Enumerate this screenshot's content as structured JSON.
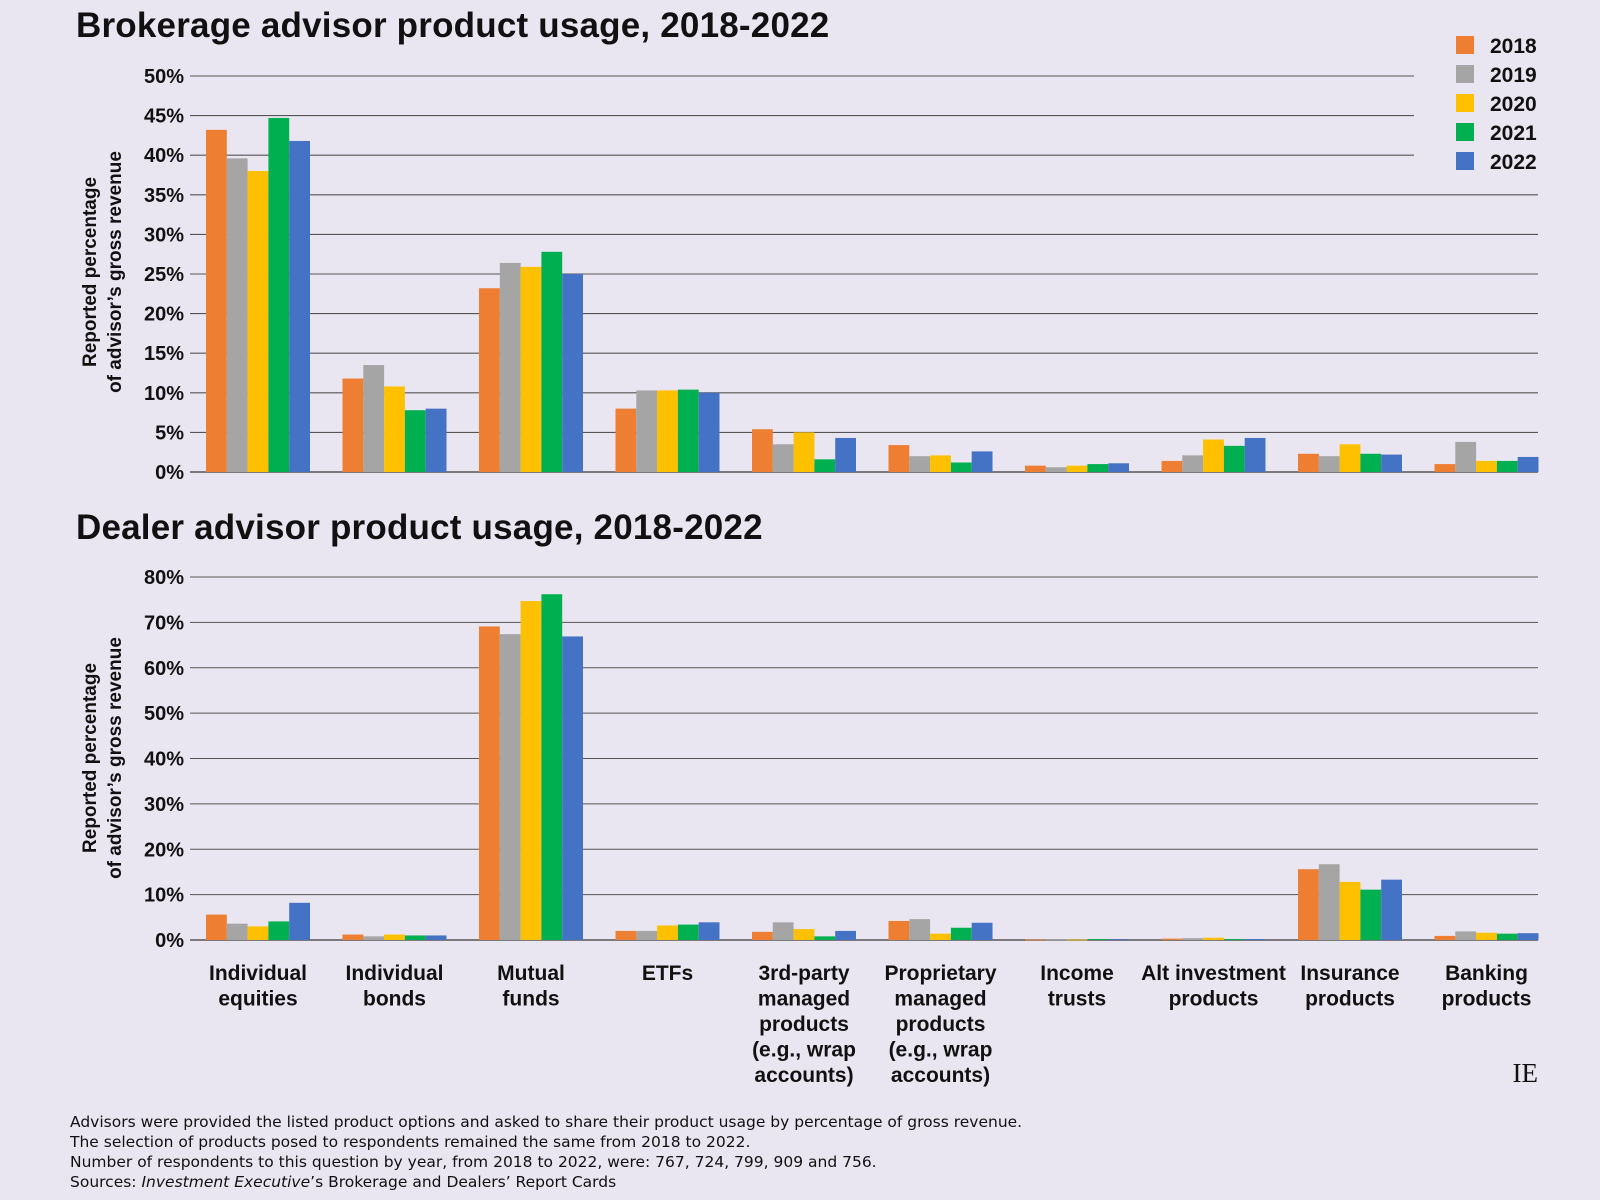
{
  "colors": {
    "2018": "#ee7e32",
    "2019": "#a5a5a5",
    "2020": "#ffc000",
    "2021": "#00b050",
    "2022": "#4472c4",
    "gridline": "#555555",
    "background": "#e9e6f1"
  },
  "brand": "IE",
  "footnotes": {
    "line1": "Advisors were provided the listed product options and asked to share their product usage by percentage of gross revenue.",
    "line2": "The selection of products posed to respondents remained the same from 2018 to 2022.",
    "line3": "Number of respondents to this question by year, from 2018 to 2022, were: 767, 724, 799, 909 and 756.",
    "line4_prefix": "Sources: ",
    "line4_italic": "Investment Executive",
    "line4_suffix": "’s Brokerage and Dealers’ Report Cards"
  },
  "chart_data": [
    {
      "type": "bar",
      "title": "Brokerage advisor product usage, 2018-2022",
      "ylabel": [
        "Reported percentage",
        "of advisor’s gross revenue"
      ],
      "ylim": [
        0,
        50
      ],
      "yticks": [
        "0%",
        "5%",
        "10%",
        "15%",
        "20%",
        "25%",
        "30%",
        "35%",
        "40%",
        "45%",
        "50%"
      ],
      "grid": true,
      "legend": "top-right",
      "categories": [
        [
          "Individual",
          "equities"
        ],
        [
          "Individual",
          "bonds"
        ],
        [
          "Mutual",
          "funds"
        ],
        [
          "ETFs"
        ],
        [
          "3rd-party",
          "managed",
          "products",
          "(e.g., wrap",
          "accounts)"
        ],
        [
          "Proprietary",
          "managed",
          "products",
          "(e.g., wrap",
          "accounts)"
        ],
        [
          "Income",
          "trusts"
        ],
        [
          "Alt investment",
          "products"
        ],
        [
          "Insurance",
          "products"
        ],
        [
          "Banking",
          "products"
        ]
      ],
      "series": [
        {
          "name": "2018",
          "values": [
            43.2,
            11.8,
            23.2,
            8.0,
            5.4,
            3.4,
            0.8,
            1.4,
            2.3,
            1.0
          ]
        },
        {
          "name": "2019",
          "values": [
            39.6,
            13.5,
            26.4,
            10.3,
            3.5,
            2.0,
            0.6,
            2.1,
            2.0,
            3.8
          ]
        },
        {
          "name": "2020",
          "values": [
            38.0,
            10.8,
            25.9,
            10.3,
            5.0,
            2.1,
            0.8,
            4.1,
            3.5,
            1.4
          ]
        },
        {
          "name": "2021",
          "values": [
            44.7,
            7.8,
            27.8,
            10.4,
            1.6,
            1.2,
            1.0,
            3.3,
            2.3,
            1.4
          ]
        },
        {
          "name": "2022",
          "values": [
            41.8,
            8.0,
            25.0,
            10.0,
            4.3,
            2.6,
            1.1,
            4.3,
            2.2,
            1.9
          ]
        }
      ]
    },
    {
      "type": "bar",
      "title": "Dealer advisor product usage, 2018-2022",
      "ylabel": [
        "Reported percentage",
        "of advisor’s gross revenue"
      ],
      "ylim": [
        0,
        80
      ],
      "yticks": [
        "0%",
        "10%",
        "20%",
        "30%",
        "40%",
        "50%",
        "60%",
        "70%",
        "80%"
      ],
      "grid": true,
      "categories": [
        [
          "Individual",
          "equities"
        ],
        [
          "Individual",
          "bonds"
        ],
        [
          "Mutual",
          "funds"
        ],
        [
          "ETFs"
        ],
        [
          "3rd-party",
          "managed",
          "products",
          "(e.g., wrap",
          "accounts)"
        ],
        [
          "Proprietary",
          "managed",
          "products",
          "(e.g., wrap",
          "accounts)"
        ],
        [
          "Income",
          "trusts"
        ],
        [
          "Alt investment",
          "products"
        ],
        [
          "Insurance",
          "products"
        ],
        [
          "Banking",
          "products"
        ]
      ],
      "series": [
        {
          "name": "2018",
          "values": [
            5.6,
            1.2,
            69.1,
            2.0,
            1.8,
            4.2,
            0.1,
            0.3,
            15.6,
            0.9
          ]
        },
        {
          "name": "2019",
          "values": [
            3.6,
            0.8,
            67.4,
            2.0,
            3.9,
            4.6,
            0.1,
            0.4,
            16.7,
            1.9
          ]
        },
        {
          "name": "2020",
          "values": [
            3.0,
            1.2,
            74.7,
            3.2,
            2.4,
            1.4,
            0.1,
            0.5,
            12.8,
            1.6
          ]
        },
        {
          "name": "2021",
          "values": [
            4.1,
            1.0,
            76.2,
            3.4,
            0.8,
            2.7,
            0.2,
            0.2,
            11.1,
            1.4
          ]
        },
        {
          "name": "2022",
          "values": [
            8.2,
            1.0,
            66.9,
            3.9,
            2.0,
            3.8,
            0.2,
            0.2,
            13.3,
            1.5
          ]
        }
      ]
    }
  ]
}
